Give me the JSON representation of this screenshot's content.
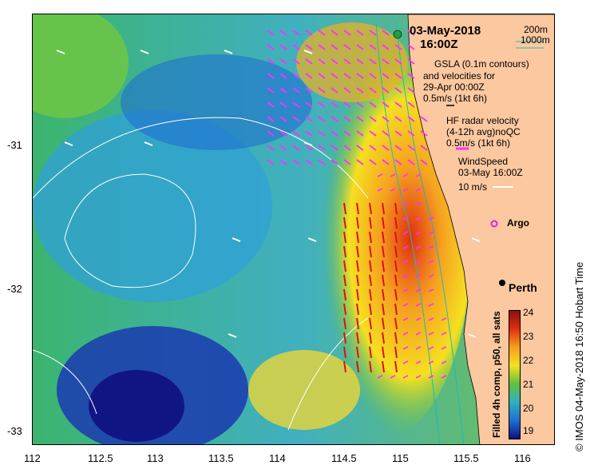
{
  "date": "03-May-2018",
  "time": "16:00Z",
  "legend": {
    "isobath_200": "200m",
    "isobath_1000": "1000m",
    "gsla_line1": "GSLA (0.1m contours)",
    "gsla_line2": "and velocities for",
    "gsla_line3": "29-Apr 00:00Z",
    "gsla_scale": "0.5m/s (1kt 6h)",
    "hf_line1": "HF radar velocity",
    "hf_line2": "(4-12h avg)noQC",
    "hf_scale": "0.5m/s (1kt 6h)",
    "wind_line1": "WindSpeed",
    "wind_line2": "03-May 16:00Z",
    "wind_scale": "10 m/s",
    "argo": "Argo"
  },
  "city": "Perth",
  "colorbar": {
    "title": "Filled 4h comp, p50, all sats",
    "ticks": [
      "24",
      "23",
      "22",
      "21",
      "20",
      "19"
    ],
    "colors": {
      "low": "#0b0b7a",
      "high": "#b01010"
    }
  },
  "credit": "© IMOS 04-May-2018 16:50 Hobart Time",
  "x_ticks": [
    "112",
    "112.5",
    "113",
    "113.5",
    "114",
    "114.5",
    "115",
    "115.5",
    "116"
  ],
  "y_ticks": [
    "-31",
    "-32",
    "-33"
  ]
}
